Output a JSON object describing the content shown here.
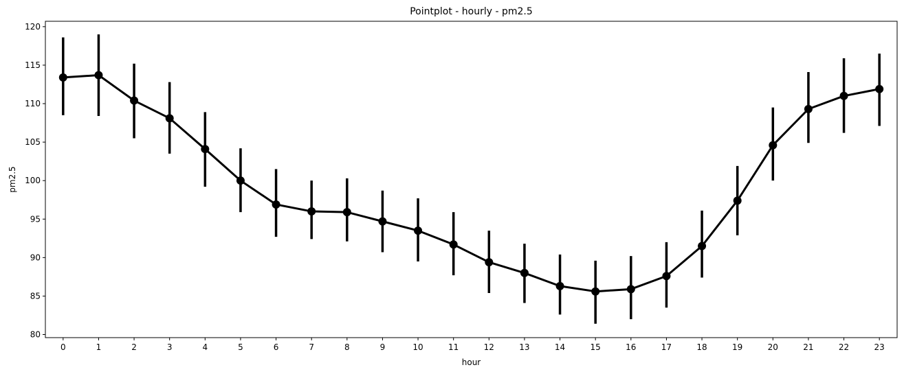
{
  "chart_data": {
    "type": "line",
    "title": "Pointplot - hourly - pm2.5",
    "xlabel": "hour",
    "ylabel": "pm2.5",
    "categories": [
      "0",
      "1",
      "2",
      "3",
      "4",
      "5",
      "6",
      "7",
      "8",
      "9",
      "10",
      "11",
      "12",
      "13",
      "14",
      "15",
      "16",
      "17",
      "18",
      "19",
      "20",
      "21",
      "22",
      "23"
    ],
    "series": [
      {
        "values": [
          113.4,
          113.7,
          110.4,
          108.1,
          104.1,
          100.0,
          96.9,
          96.0,
          95.9,
          94.7,
          93.5,
          91.7,
          89.4,
          88.0,
          86.3,
          85.6,
          85.9,
          87.6,
          91.5,
          97.4,
          104.6,
          109.3,
          111.0,
          111.9
        ],
        "ci_low": [
          108.5,
          108.4,
          105.5,
          103.5,
          99.2,
          95.9,
          92.7,
          92.4,
          92.1,
          90.7,
          89.5,
          87.7,
          85.4,
          84.1,
          82.6,
          81.4,
          82.0,
          83.5,
          87.4,
          92.9,
          100.0,
          104.9,
          106.2,
          107.1
        ],
        "ci_high": [
          118.6,
          119.0,
          115.2,
          112.8,
          108.9,
          104.2,
          101.5,
          100.0,
          100.3,
          98.7,
          97.7,
          95.9,
          93.5,
          91.8,
          90.4,
          89.6,
          90.2,
          92.0,
          96.1,
          101.9,
          109.5,
          114.1,
          115.9,
          116.5
        ]
      }
    ],
    "ylim": [
      79.6,
      120.7
    ],
    "yticks": [
      80,
      85,
      90,
      95,
      100,
      105,
      110,
      115,
      120
    ],
    "grid": false,
    "color": "#000000"
  }
}
